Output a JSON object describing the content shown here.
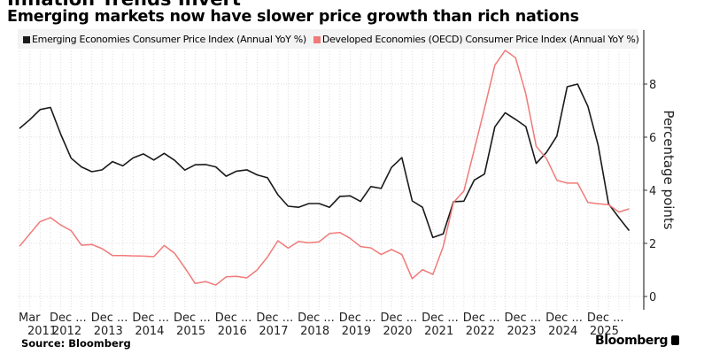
{
  "header": {
    "title": "Inflation Trends Invert",
    "subtitle": "Emerging markets now have slower price growth than rich nations"
  },
  "footer": {
    "source": "Source: Bloomberg",
    "brand": "Bloomberg"
  },
  "chart_data": {
    "type": "line",
    "title": "Inflation Trends Invert",
    "subtitle": "Emerging markets now have slower price growth than rich nations",
    "xlabel": "",
    "ylabel": "Percentage points",
    "y_axis_side": "right",
    "ylim": [
      -0.5,
      9.9
    ],
    "yticks": [
      0,
      2,
      4,
      6,
      8
    ],
    "grid": true,
    "legend_position": "top",
    "x_tick_labels": [
      {
        "index": 0,
        "line1": "Mar",
        "line2": "2011"
      },
      {
        "index": 3,
        "line1": "Dec ...",
        "line2": "2012"
      },
      {
        "index": 7,
        "line1": "Dec ...",
        "line2": "2013"
      },
      {
        "index": 11,
        "line1": "Dec ...",
        "line2": "2014"
      },
      {
        "index": 15,
        "line1": "Dec ...",
        "line2": "2015"
      },
      {
        "index": 19,
        "line1": "Dec ...",
        "line2": "2016"
      },
      {
        "index": 23,
        "line1": "Dec ...",
        "line2": "2017"
      },
      {
        "index": 27,
        "line1": "Dec ...",
        "line2": "2018"
      },
      {
        "index": 31,
        "line1": "Dec ...",
        "line2": "2019"
      },
      {
        "index": 35,
        "line1": "Dec ...",
        "line2": "2020"
      },
      {
        "index": 39,
        "line1": "Dec ...",
        "line2": "2021"
      },
      {
        "index": 43,
        "line1": "Dec ...",
        "line2": "2022"
      },
      {
        "index": 47,
        "line1": "Dec ...",
        "line2": "2023"
      },
      {
        "index": 51,
        "line1": "Dec ...",
        "line2": "2024"
      },
      {
        "index": 55,
        "line1": "Dec ...",
        "line2": "2025"
      }
    ],
    "series": [
      {
        "name": "Emerging Economies Consumer Price Index (Annual YoY %)",
        "color": "#1a1a1a",
        "values": [
          6.33,
          6.66,
          7.04,
          7.12,
          6.1,
          5.21,
          4.88,
          4.7,
          4.77,
          5.08,
          4.92,
          5.22,
          5.37,
          5.14,
          5.39,
          5.13,
          4.76,
          4.96,
          4.97,
          4.88,
          4.53,
          4.72,
          4.77,
          4.58,
          4.47,
          3.83,
          3.4,
          3.36,
          3.5,
          3.5,
          3.36,
          3.77,
          3.79,
          3.58,
          4.14,
          4.07,
          4.86,
          5.23,
          3.6,
          3.36,
          2.22,
          2.36,
          3.57,
          3.59,
          4.38,
          4.61,
          6.39,
          6.92,
          6.67,
          6.4,
          5.01,
          5.43,
          6.04,
          7.9,
          8.0,
          7.16,
          5.69,
          3.49,
          2.97,
          2.48
        ]
      },
      {
        "name": "Developed Economies (OECD) Consumer Price Index (Annual YoY %)",
        "color": "#f07a78",
        "values": [
          1.89,
          2.36,
          2.82,
          2.97,
          2.69,
          2.48,
          1.93,
          1.96,
          1.8,
          1.54,
          1.54,
          1.53,
          1.52,
          1.5,
          1.92,
          1.63,
          1.08,
          0.49,
          0.56,
          0.43,
          0.74,
          0.76,
          0.7,
          1.0,
          1.49,
          2.1,
          1.82,
          2.07,
          2.02,
          2.06,
          2.37,
          2.41,
          2.19,
          1.88,
          1.83,
          1.58,
          1.77,
          1.58,
          0.67,
          1.01,
          0.83,
          1.88,
          3.54,
          3.97,
          5.52,
          7.08,
          8.71,
          9.27,
          8.99,
          7.63,
          5.66,
          5.19,
          4.38,
          4.27,
          4.27,
          3.54,
          3.49,
          3.46,
          3.18,
          3.3
        ]
      }
    ]
  }
}
